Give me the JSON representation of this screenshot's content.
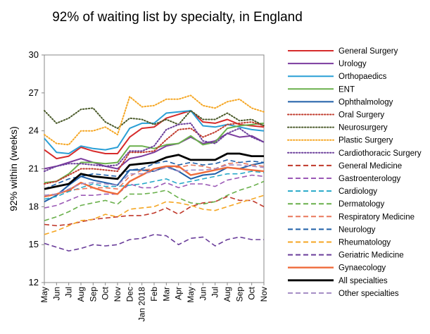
{
  "chart_data": {
    "type": "line",
    "title": "92% of waiting list by specialty, in England",
    "ylabel": "92% within  (weeks)",
    "xlabel": "",
    "ylim": [
      12,
      30
    ],
    "yticks": [
      12,
      15,
      18,
      21,
      24,
      27,
      30
    ],
    "grid": false,
    "legend_position": "right",
    "x": [
      "May",
      "Jun",
      "Jul",
      "Aug",
      "Sep",
      "Oct",
      "Nov",
      "Dec",
      "Jan 2018",
      "Feb",
      "Mar",
      "Apr",
      "May",
      "Jun",
      "Jul",
      "Aug",
      "Sep",
      "Oct",
      "Nov"
    ],
    "series": [
      {
        "name": "General Surgery",
        "color": "#d62b2b",
        "dash": "solid",
        "width": 2,
        "values": [
          22.5,
          21.8,
          22.0,
          22.7,
          22.4,
          22.2,
          22.2,
          23.5,
          24.2,
          24.3,
          25.0,
          25.3,
          25.6,
          24.7,
          24.6,
          24.9,
          24.5,
          24.4,
          24.3
        ]
      },
      {
        "name": "Urology",
        "color": "#7b3b9e",
        "dash": "solid",
        "width": 2,
        "values": [
          21.0,
          21.2,
          21.5,
          21.8,
          21.5,
          21.2,
          21.0,
          21.8,
          22.0,
          22.3,
          22.8,
          23.0,
          23.5,
          23.0,
          23.2,
          23.8,
          23.5,
          23.6,
          23.1
        ]
      },
      {
        "name": "Orthopaedics",
        "color": "#2a9fd6",
        "dash": "solid",
        "width": 2,
        "values": [
          23.4,
          22.3,
          22.2,
          22.8,
          22.6,
          22.5,
          22.7,
          24.2,
          24.6,
          24.6,
          25.4,
          25.5,
          25.6,
          24.4,
          24.3,
          24.5,
          24.3,
          24.1,
          24.0
        ]
      },
      {
        "name": "ENT",
        "color": "#6ab04c",
        "dash": "solid",
        "width": 2,
        "values": [
          19.9,
          20.0,
          20.6,
          21.5,
          21.5,
          21.4,
          21.5,
          22.8,
          22.8,
          22.6,
          22.9,
          23.0,
          23.6,
          22.9,
          23.1,
          24.2,
          24.4,
          24.5,
          24.6
        ]
      },
      {
        "name": "Ophthalmology",
        "color": "#1f5fa8",
        "dash": "solid",
        "width": 2,
        "values": [
          18.4,
          18.9,
          19.7,
          20.4,
          20.1,
          19.9,
          19.7,
          20.9,
          20.9,
          20.8,
          21.2,
          20.8,
          20.2,
          20.5,
          20.6,
          21.1,
          21.0,
          21.3,
          21.5
        ]
      },
      {
        "name": "Oral Surgery",
        "color": "#c0392b",
        "dash": "dotted",
        "width": 2,
        "values": [
          19.8,
          20.0,
          20.5,
          21.0,
          21.0,
          20.9,
          20.8,
          22.3,
          22.3,
          22.4,
          23.3,
          24.1,
          24.2,
          23.5,
          23.9,
          24.5,
          24.6,
          24.7,
          24.4
        ]
      },
      {
        "name": "Neurosurgery",
        "color": "#4a5a2a",
        "dash": "dotted",
        "width": 2,
        "values": [
          25.6,
          24.6,
          25.0,
          25.7,
          25.8,
          24.7,
          24.2,
          25.0,
          24.9,
          24.5,
          24.9,
          24.5,
          25.6,
          24.9,
          24.9,
          25.4,
          24.8,
          24.9,
          24.4
        ]
      },
      {
        "name": "Plastic Surgery",
        "color": "#f5a623",
        "dash": "dotted",
        "width": 2,
        "values": [
          23.7,
          23.0,
          22.9,
          24.0,
          24.0,
          24.3,
          23.7,
          26.7,
          25.9,
          26.0,
          26.5,
          26.5,
          26.8,
          26.0,
          25.8,
          26.3,
          26.5,
          25.8,
          25.5
        ]
      },
      {
        "name": "Cardiothoracic Surgery",
        "color": "#6a3d9a",
        "dash": "dotted",
        "width": 2,
        "values": [
          20.8,
          21.2,
          21.4,
          21.4,
          21.3,
          21.2,
          21.3,
          22.4,
          22.4,
          22.8,
          24.1,
          24.5,
          24.6,
          23.2,
          23.0,
          23.8,
          24.2,
          23.5,
          23.1
        ]
      },
      {
        "name": "General Medicine",
        "color": "#c0392b",
        "dash": "dashed",
        "width": 1.6,
        "values": [
          16.6,
          16.5,
          16.6,
          16.8,
          17.0,
          17.1,
          17.2,
          17.3,
          17.3,
          17.5,
          17.9,
          17.4,
          18.0,
          18.3,
          18.4,
          18.8,
          18.5,
          18.5,
          18.0
        ]
      },
      {
        "name": "Gastroenterology",
        "color": "#9b59b6",
        "dash": "dashed",
        "width": 1.6,
        "values": [
          17.9,
          18.1,
          18.5,
          18.9,
          18.9,
          19.0,
          19.0,
          19.8,
          19.5,
          19.5,
          19.9,
          19.5,
          19.8,
          19.8,
          19.6,
          20.1,
          20.3,
          20.5,
          20.4
        ]
      },
      {
        "name": "Cardiology",
        "color": "#27a9c9",
        "dash": "dashed",
        "width": 1.6,
        "values": [
          18.6,
          18.8,
          19.2,
          19.5,
          19.8,
          19.6,
          19.6,
          19.7,
          19.8,
          20.0,
          20.2,
          19.8,
          20.0,
          20.2,
          20.4,
          20.6,
          20.6,
          20.8,
          20.7
        ]
      },
      {
        "name": "Dermatology",
        "color": "#6ab04c",
        "dash": "dashed",
        "width": 1.6,
        "values": [
          16.9,
          17.2,
          17.6,
          18.1,
          18.3,
          18.5,
          18.2,
          19.0,
          19.0,
          19.1,
          19.3,
          18.7,
          18.3,
          18.2,
          18.4,
          18.9,
          19.3,
          19.6,
          20.0
        ]
      },
      {
        "name": "Respiratory Medicine",
        "color": "#e9785b",
        "dash": "dashed",
        "width": 1.6,
        "values": [
          18.9,
          19.0,
          19.3,
          19.4,
          19.5,
          19.5,
          19.4,
          20.4,
          20.9,
          21.0,
          21.2,
          21.1,
          21.3,
          21.2,
          21.0,
          21.4,
          21.5,
          21.3,
          21.2
        ]
      },
      {
        "name": "Neurology",
        "color": "#1f5fa8",
        "dash": "dashed",
        "width": 1.6,
        "values": [
          19.4,
          19.8,
          20.2,
          20.4,
          20.6,
          20.5,
          20.4,
          20.9,
          21.0,
          21.4,
          21.6,
          21.3,
          21.5,
          21.3,
          21.4,
          21.7,
          21.5,
          21.6,
          21.5
        ]
      },
      {
        "name": "Rheumatology",
        "color": "#f5a623",
        "dash": "dashed",
        "width": 1.6,
        "values": [
          15.8,
          16.1,
          16.5,
          16.9,
          17.0,
          17.4,
          17.2,
          17.8,
          17.9,
          18.0,
          18.4,
          18.3,
          18.1,
          17.8,
          17.7,
          18.0,
          18.3,
          18.6,
          18.9
        ]
      },
      {
        "name": "Geriatric Medicine",
        "color": "#6a3d9a",
        "dash": "dashed",
        "width": 1.6,
        "values": [
          15.1,
          14.8,
          14.5,
          14.7,
          15.0,
          14.9,
          15.0,
          15.4,
          15.5,
          15.8,
          15.7,
          15.0,
          15.5,
          15.6,
          14.9,
          15.4,
          15.6,
          15.4,
          15.4
        ]
      },
      {
        "name": "Gynaecology",
        "color": "#ef6c3c",
        "dash": "solid",
        "width": 2.4,
        "values": [
          18.8,
          19.0,
          19.3,
          19.9,
          19.5,
          19.2,
          19.0,
          20.0,
          20.5,
          21.0,
          21.2,
          21.2,
          20.5,
          20.7,
          20.9,
          21.1,
          21.0,
          20.9,
          20.8
        ]
      },
      {
        "name": "All specialties",
        "color": "#000000",
        "dash": "solid",
        "width": 2.8,
        "values": [
          19.4,
          19.6,
          19.8,
          20.6,
          20.4,
          20.3,
          20.2,
          21.3,
          21.4,
          21.5,
          21.9,
          22.1,
          21.7,
          21.7,
          21.7,
          22.2,
          22.2,
          22.0,
          22.0
        ]
      },
      {
        "name": "Other specialties",
        "color": "#a38bc4",
        "dash": "dashed",
        "width": 1.6,
        "values": [
          18.9,
          19.0,
          19.4,
          19.8,
          19.9,
          19.8,
          19.7,
          20.6,
          20.6,
          20.8,
          21.1,
          20.8,
          20.9,
          20.9,
          21.0,
          21.3,
          21.3,
          21.2,
          21.1
        ]
      }
    ]
  }
}
